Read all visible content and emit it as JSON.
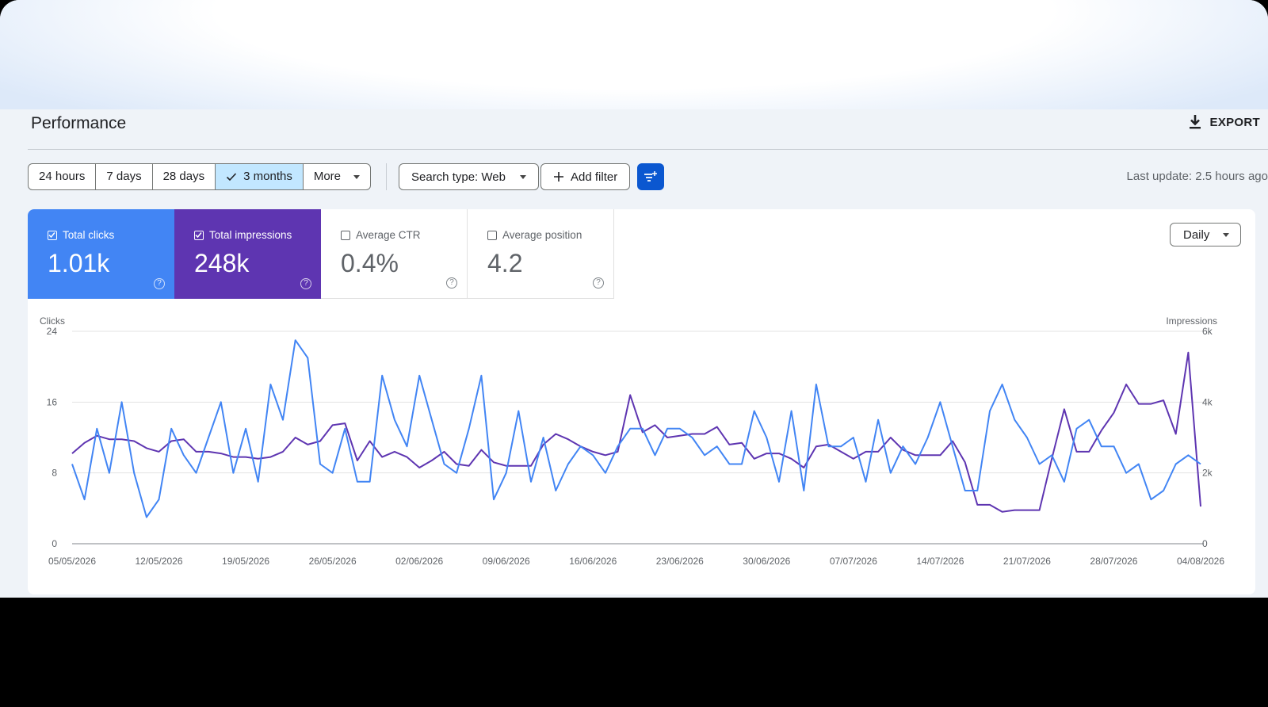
{
  "header": {
    "title": "Performance",
    "export_label": "EXPORT"
  },
  "toolbar": {
    "ranges": [
      "24 hours",
      "7 days",
      "28 days",
      "3 months",
      "More"
    ],
    "selected_range": "3 months",
    "search_type": "Search type: Web",
    "add_filter": "Add filter",
    "last_update": "Last update: 2.5 hours ago"
  },
  "metrics": {
    "clicks": {
      "label": "Total clicks",
      "value": "1.01k",
      "checked": true
    },
    "impressions": {
      "label": "Total impressions",
      "value": "248k",
      "checked": true
    },
    "ctr": {
      "label": "Average CTR",
      "value": "0.4%",
      "checked": false
    },
    "position": {
      "label": "Average position",
      "value": "4.2",
      "checked": false
    }
  },
  "granularity": "Daily",
  "colors": {
    "clicks": "#4285f4",
    "impressions": "#5e35b1",
    "selected_tab": "#c2e7ff",
    "filter_button": "#0b57d0"
  },
  "chart_data": {
    "type": "line",
    "grid": true,
    "left_axis_label": "Clicks",
    "right_axis_label": "Impressions",
    "ylim_left": [
      0,
      24
    ],
    "ylim_right": [
      0,
      6000
    ],
    "yticks_left": [
      "0",
      "8",
      "16",
      "24"
    ],
    "yticks_right": [
      "0",
      "2k",
      "4k",
      "6k"
    ],
    "x_tick_labels": [
      "05/05/2026",
      "12/05/2026",
      "19/05/2026",
      "26/05/2026",
      "02/06/2026",
      "09/06/2026",
      "16/06/2026",
      "23/06/2026",
      "30/06/2026",
      "07/07/2026",
      "14/07/2026",
      "21/07/2026",
      "28/07/2026",
      "04/08/2026"
    ],
    "x_start": "05/05/2026",
    "x_end": "04/08/2026",
    "series": [
      {
        "name": "Total clicks",
        "axis": "left",
        "values": [
          9,
          5,
          13,
          8,
          16,
          8,
          3,
          5,
          13,
          10,
          8,
          12,
          16,
          8,
          13,
          7,
          18,
          14,
          23,
          21,
          9,
          8,
          13,
          7,
          7,
          19,
          14,
          11,
          19,
          14,
          9,
          8,
          13,
          19,
          5,
          8,
          15,
          7,
          12,
          6,
          9,
          11,
          10,
          8,
          11,
          13,
          13,
          10,
          13,
          13,
          12,
          10,
          11,
          9,
          9,
          15,
          12,
          7,
          15,
          6,
          18,
          11,
          11,
          12,
          7,
          14,
          8,
          11,
          9,
          12,
          16,
          11,
          6,
          6,
          15,
          18,
          14,
          12,
          9,
          10,
          7,
          13,
          14,
          11,
          11,
          8,
          9,
          5,
          6,
          9,
          10,
          9
        ]
      },
      {
        "name": "Total impressions",
        "axis": "right",
        "values": [
          2550,
          2850,
          3050,
          2950,
          2950,
          2900,
          2700,
          2600,
          2900,
          2950,
          2600,
          2600,
          2550,
          2450,
          2450,
          2400,
          2450,
          2600,
          3000,
          2800,
          2900,
          3350,
          3400,
          2350,
          2900,
          2450,
          2600,
          2450,
          2150,
          2350,
          2600,
          2250,
          2200,
          2650,
          2300,
          2200,
          2200,
          2200,
          2800,
          3100,
          2950,
          2750,
          2600,
          2500,
          2600,
          4200,
          3150,
          3350,
          3000,
          3050,
          3100,
          3100,
          3300,
          2800,
          2850,
          2400,
          2550,
          2550,
          2400,
          2150,
          2750,
          2800,
          2600,
          2400,
          2600,
          2600,
          3000,
          2650,
          2500,
          2500,
          2500,
          2900,
          2300,
          1100,
          1100,
          900,
          950,
          950,
          950,
          2400,
          3800,
          2600,
          2600,
          3200,
          3700,
          4500,
          3950,
          3950,
          4050,
          3100,
          5400,
          1050
        ]
      }
    ]
  }
}
